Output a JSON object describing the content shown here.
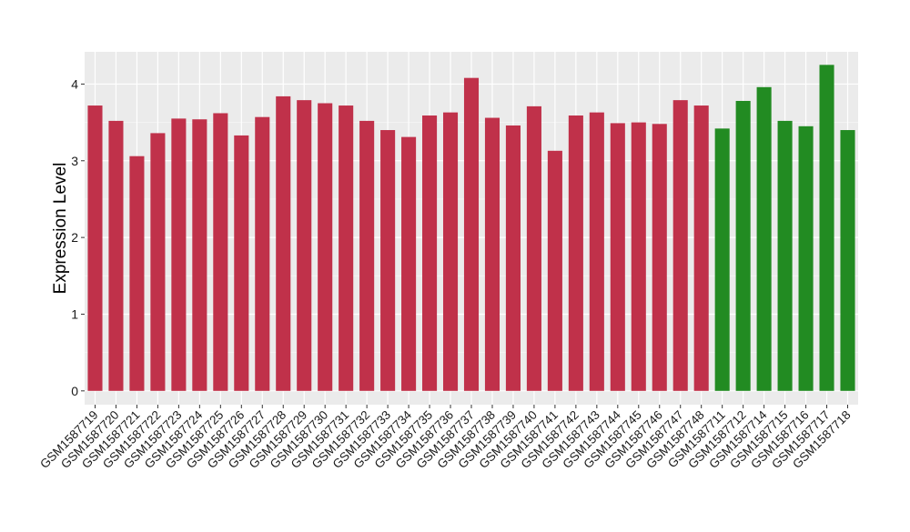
{
  "chart_data": {
    "type": "bar",
    "title": "",
    "xlabel": "",
    "ylabel": "Expression Level",
    "ylim": [
      -0.18,
      4.42
    ],
    "yticks": [
      0,
      1,
      2,
      3,
      4
    ],
    "grid": true,
    "background": "#EBEBEB",
    "colors": {
      "group_a": "#C0314A",
      "group_b": "#228B22"
    },
    "categories": [
      "GSM1587719",
      "GSM1587720",
      "GSM1587721",
      "GSM1587722",
      "GSM1587723",
      "GSM1587724",
      "GSM1587725",
      "GSM1587726",
      "GSM1587727",
      "GSM1587728",
      "GSM1587729",
      "GSM1587730",
      "GSM1587731",
      "GSM1587732",
      "GSM1587733",
      "GSM1587734",
      "GSM1587735",
      "GSM1587736",
      "GSM1587737",
      "GSM1587738",
      "GSM1587739",
      "GSM1587740",
      "GSM1587741",
      "GSM1587742",
      "GSM1587743",
      "GSM1587744",
      "GSM1587745",
      "GSM1587746",
      "GSM1587747",
      "GSM1587748",
      "GSM1587711",
      "GSM1587712",
      "GSM1587714",
      "GSM1587715",
      "GSM1587716",
      "GSM1587717",
      "GSM1587718"
    ],
    "values": [
      3.72,
      3.52,
      3.06,
      3.36,
      3.55,
      3.54,
      3.62,
      3.33,
      3.57,
      3.84,
      3.79,
      3.75,
      3.72,
      3.52,
      3.4,
      3.31,
      3.59,
      3.63,
      4.08,
      3.56,
      3.46,
      3.71,
      3.13,
      3.59,
      3.63,
      3.49,
      3.5,
      3.48,
      3.79,
      3.72,
      3.42,
      3.78,
      3.96,
      3.52,
      3.45,
      4.25,
      3.4
    ],
    "groups": [
      "a",
      "a",
      "a",
      "a",
      "a",
      "a",
      "a",
      "a",
      "a",
      "a",
      "a",
      "a",
      "a",
      "a",
      "a",
      "a",
      "a",
      "a",
      "a",
      "a",
      "a",
      "a",
      "a",
      "a",
      "a",
      "a",
      "a",
      "a",
      "a",
      "a",
      "b",
      "b",
      "b",
      "b",
      "b",
      "b",
      "b"
    ]
  }
}
